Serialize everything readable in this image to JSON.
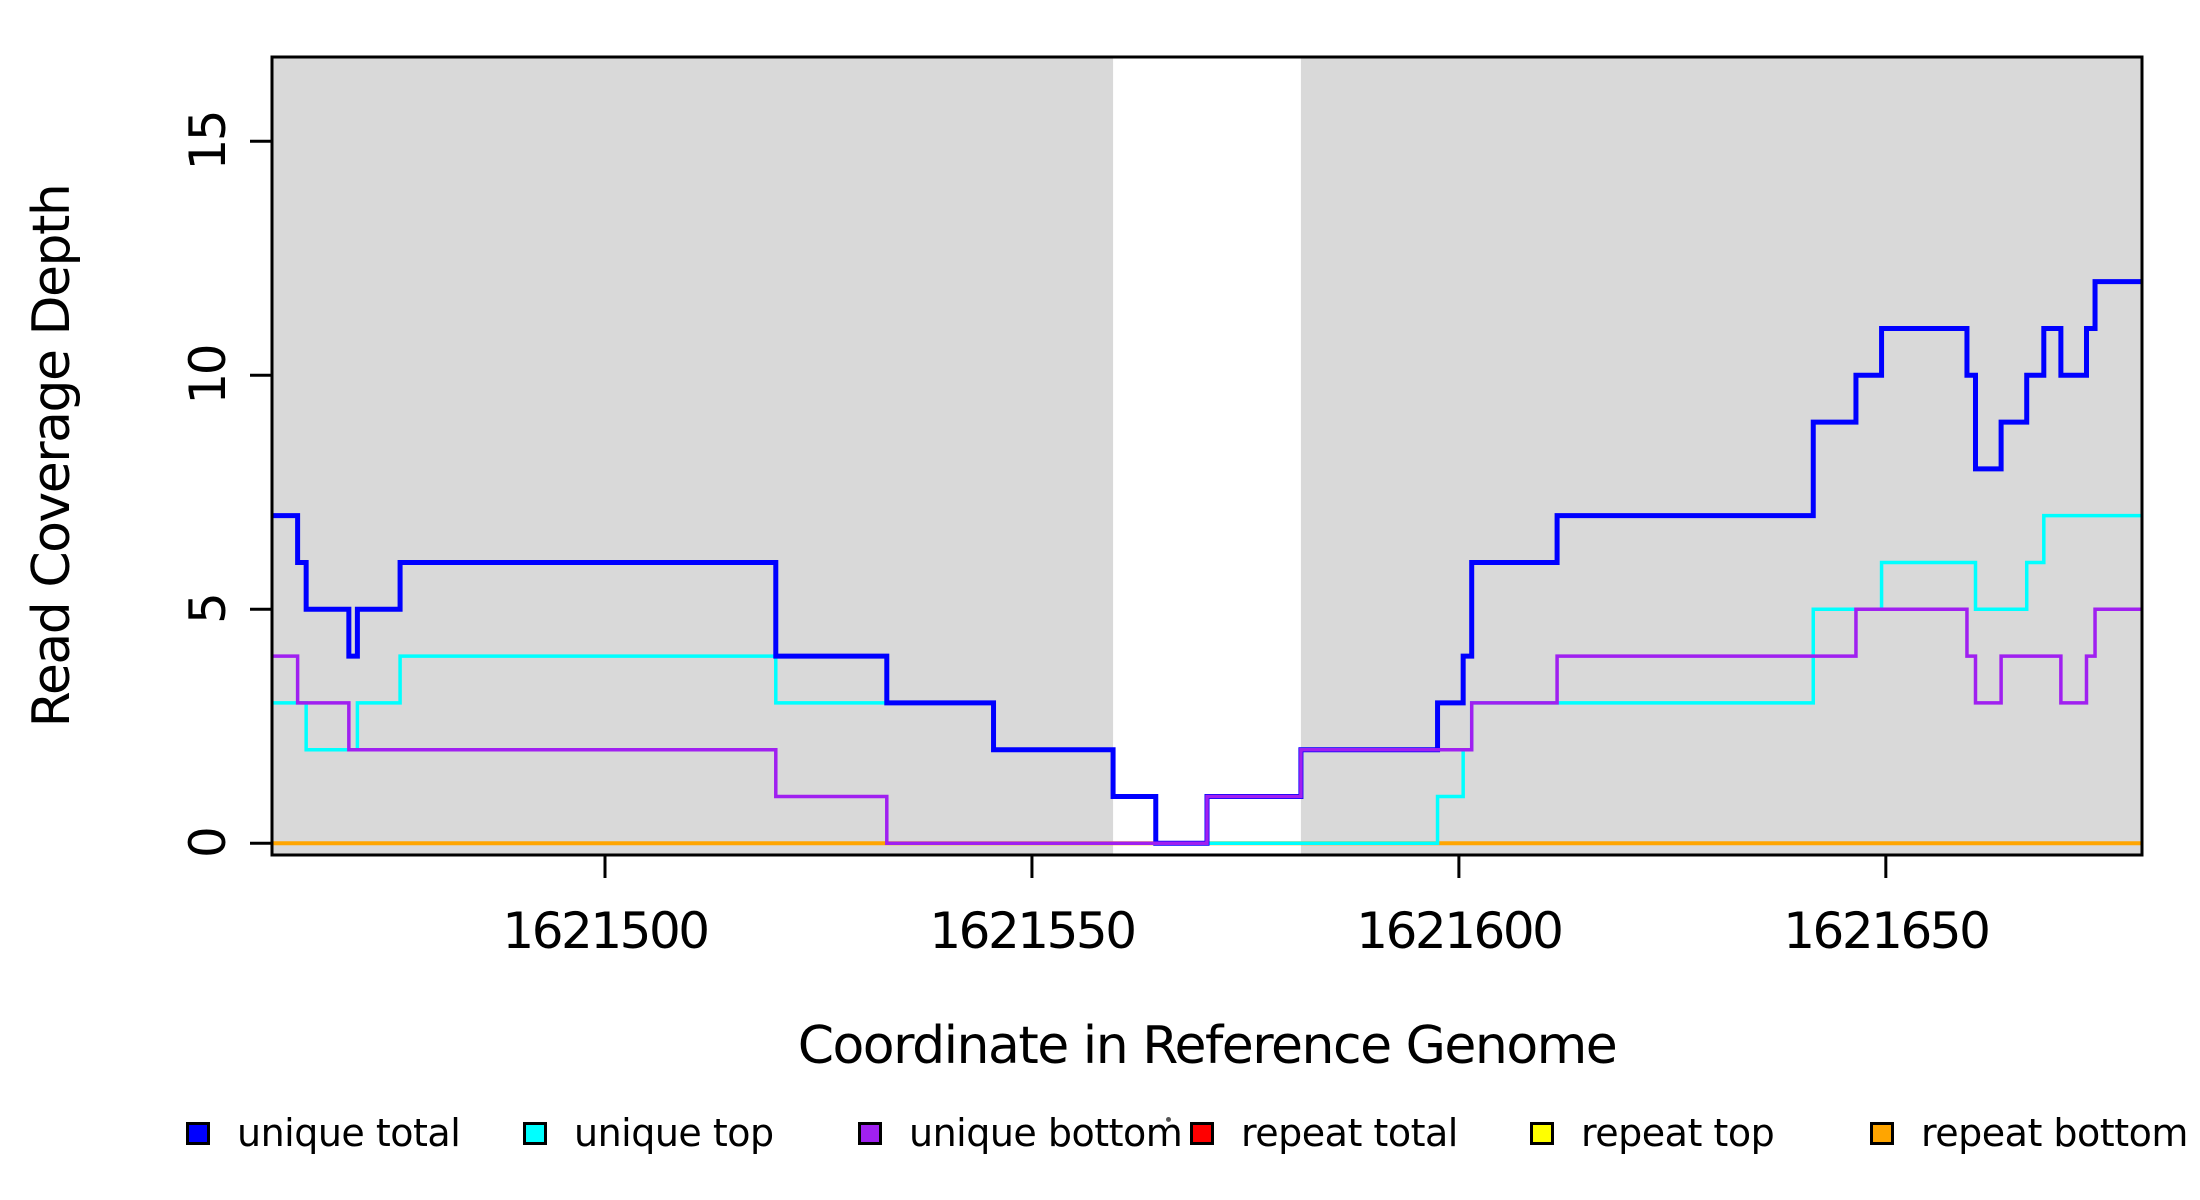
{
  "figure": {
    "title": "",
    "background_color": "#ffffff",
    "shaded_region_color": "#d9d9d9",
    "axis_color": "#000000"
  },
  "chart_data": {
    "type": "line",
    "subtype": "step-coverage-plot",
    "title": "",
    "xlabel": "Coordinate in Reference Genome",
    "ylabel": "Read Coverage Depth",
    "xlim": [
      1621461,
      1621680
    ],
    "ylim": [
      -0.25,
      16.8
    ],
    "x_end": 1621680,
    "grid": false,
    "legend_position": "bottom",
    "x_ticks": [
      1621500,
      1621550,
      1621600,
      1621650
    ],
    "x_tick_labels": [
      "1621500",
      "1621550",
      "1621600",
      "1621650"
    ],
    "y_ticks": [
      0,
      5,
      10,
      15
    ],
    "y_tick_labels": [
      "0",
      "5",
      "10",
      "15"
    ],
    "shaded_x_regions": [
      [
        1621461,
        1621559.5
      ],
      [
        1621581.5,
        1621680
      ]
    ],
    "series": [
      {
        "name": "repeat total",
        "color": "#ff0000",
        "width": 3,
        "steps": [
          [
            1621461,
            0
          ]
        ]
      },
      {
        "name": "repeat top",
        "color": "#ffff00",
        "width": 3,
        "steps": [
          [
            1621461,
            0
          ]
        ]
      },
      {
        "name": "repeat bottom",
        "color": "#ffa500",
        "width": 4,
        "steps": [
          [
            1621461,
            0
          ]
        ]
      },
      {
        "name": "unique top",
        "color": "#00ffff",
        "width": 3.5,
        "steps": [
          [
            1621461,
            3
          ],
          [
            1621465,
            2
          ],
          [
            1621471,
            3
          ],
          [
            1621476,
            4
          ],
          [
            1621520,
            3
          ],
          [
            1621545.5,
            2
          ],
          [
            1621559.5,
            1
          ],
          [
            1621564.5,
            0
          ],
          [
            1621597.5,
            1
          ],
          [
            1621600.5,
            2
          ],
          [
            1621601.5,
            3
          ],
          [
            1621641.5,
            5
          ],
          [
            1621649.5,
            6
          ],
          [
            1621660.5,
            5
          ],
          [
            1621666.5,
            6
          ],
          [
            1621668.5,
            7
          ]
        ]
      },
      {
        "name": "unique total",
        "color": "#0000ff",
        "width": 5,
        "steps": [
          [
            1621461,
            7
          ],
          [
            1621464,
            6
          ],
          [
            1621465,
            5
          ],
          [
            1621470,
            4
          ],
          [
            1621471,
            5
          ],
          [
            1621476,
            6
          ],
          [
            1621520,
            4
          ],
          [
            1621533,
            3
          ],
          [
            1621545.5,
            2
          ],
          [
            1621559.5,
            1
          ],
          [
            1621564.5,
            0
          ],
          [
            1621570.5,
            1
          ],
          [
            1621581.5,
            2
          ],
          [
            1621597.5,
            3
          ],
          [
            1621600.5,
            4
          ],
          [
            1621601.5,
            6
          ],
          [
            1621611.5,
            7
          ],
          [
            1621641.5,
            9
          ],
          [
            1621646.5,
            10
          ],
          [
            1621649.5,
            11
          ],
          [
            1621659.5,
            10
          ],
          [
            1621660.5,
            8
          ],
          [
            1621663.5,
            9
          ],
          [
            1621666.5,
            10
          ],
          [
            1621668.5,
            11
          ],
          [
            1621670.5,
            10
          ],
          [
            1621673.5,
            11
          ],
          [
            1621674.5,
            12
          ]
        ]
      },
      {
        "name": "unique bottom",
        "color": "#a020f0",
        "width": 3.5,
        "steps": [
          [
            1621461,
            4
          ],
          [
            1621464,
            3
          ],
          [
            1621470,
            2
          ],
          [
            1621520,
            1
          ],
          [
            1621533,
            0
          ],
          [
            1621570.5,
            1
          ],
          [
            1621581.5,
            2
          ],
          [
            1621601.5,
            3
          ],
          [
            1621611.5,
            4
          ],
          [
            1621646.5,
            5
          ],
          [
            1621659.5,
            4
          ],
          [
            1621660.5,
            3
          ],
          [
            1621663.5,
            4
          ],
          [
            1621670.5,
            3
          ],
          [
            1621673.5,
            4
          ],
          [
            1621674.5,
            5
          ]
        ]
      }
    ],
    "legend": [
      {
        "label": "unique total",
        "color": "#0000ff"
      },
      {
        "label": "unique top",
        "color": "#00ffff"
      },
      {
        "label": "unique bottom",
        "color": "#a020f0"
      },
      {
        "label": "repeat total",
        "color": "#ff0000"
      },
      {
        "label": "repeat top",
        "color": "#ffff00"
      },
      {
        "label": "repeat bottom",
        "color": "#ffa500"
      }
    ]
  }
}
